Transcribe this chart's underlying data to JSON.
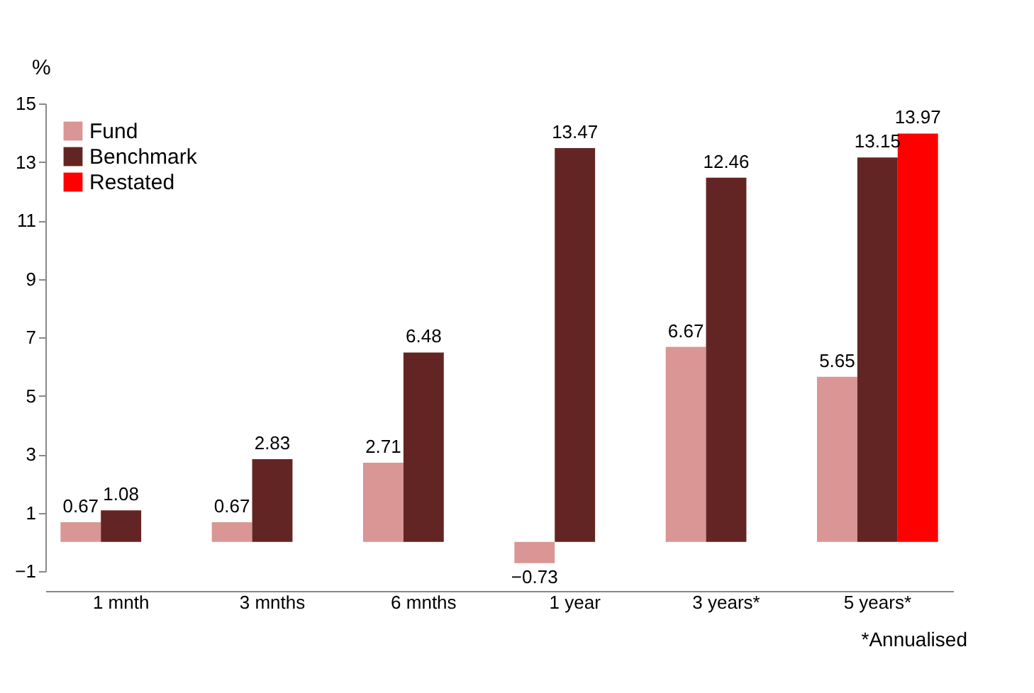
{
  "chart_data": {
    "type": "bar",
    "ylabel": "%",
    "categories": [
      "1 mnth",
      "3 mnths",
      "6 mnths",
      "1 year",
      "3 years*",
      "5 years*"
    ],
    "series": [
      {
        "name": "Fund",
        "color": "#d99694",
        "values": [
          0.67,
          0.67,
          2.71,
          -0.73,
          6.67,
          5.65
        ]
      },
      {
        "name": "Benchmark",
        "color": "#632523",
        "values": [
          1.08,
          2.83,
          6.48,
          13.47,
          12.46,
          13.15
        ]
      },
      {
        "name": "Restated",
        "color": "#ff0000",
        "values": [
          null,
          null,
          null,
          null,
          null,
          13.97
        ]
      }
    ],
    "ylim": [
      -1,
      15
    ],
    "yticks": [
      -1,
      1,
      3,
      5,
      7,
      9,
      11,
      13,
      15
    ],
    "data_labels": true,
    "legend": "top left",
    "grid": false,
    "annotations": [
      "*Annualised"
    ]
  }
}
